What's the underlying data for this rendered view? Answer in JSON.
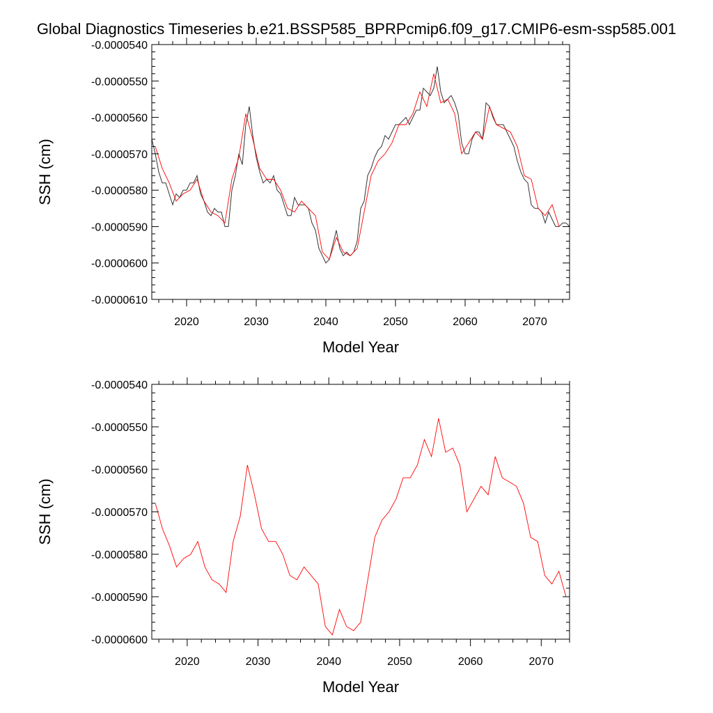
{
  "figure_title": "Global Diagnostics Timeseries b.e21.BSSP585_BPRPcmip6.f09_g17.CMIP6-esm-ssp585.001",
  "chart_data": [
    {
      "type": "line",
      "xlabel": "Model Year",
      "ylabel": "SSH (cm)",
      "xlim": [
        2015,
        2075
      ],
      "ylim": [
        -6.1e-05,
        -5.4e-05
      ],
      "x_ticks": [
        2020,
        2030,
        2040,
        2050,
        2060,
        2070
      ],
      "y_ticks": [
        -5.4e-05,
        -5.5e-05,
        -5.6e-05,
        -5.7e-05,
        -5.8e-05,
        -5.9e-05,
        -6e-05,
        -6.1e-05
      ],
      "y_tick_labels": [
        "-0.0000540",
        "-0.0000550",
        "-0.0000560",
        "-0.0000570",
        "-0.0000580",
        "-0.0000590",
        "-0.0000600",
        "-0.0000610"
      ],
      "x_tick_labels": [
        "2020",
        "2030",
        "2040",
        "2050",
        "2060",
        "2070"
      ],
      "grid": false,
      "series": [
        {
          "color": "#333333",
          "style": "monthly",
          "x": [
            2015.0,
            2015.5,
            2016.0,
            2016.5,
            2017.0,
            2017.5,
            2018.0,
            2018.5,
            2019.0,
            2019.5,
            2020.0,
            2020.5,
            2021.0,
            2021.5,
            2022.0,
            2022.5,
            2023.0,
            2023.5,
            2024.0,
            2024.5,
            2025.0,
            2025.5,
            2026.0,
            2026.5,
            2027.0,
            2027.5,
            2028.0,
            2028.5,
            2029.0,
            2029.5,
            2030.0,
            2030.5,
            2031.0,
            2031.5,
            2032.0,
            2032.5,
            2033.0,
            2033.5,
            2034.0,
            2034.5,
            2035.0,
            2035.5,
            2036.0,
            2036.5,
            2037.0,
            2037.5,
            2038.0,
            2038.5,
            2039.0,
            2039.5,
            2040.0,
            2040.5,
            2041.0,
            2041.5,
            2042.0,
            2042.5,
            2043.0,
            2043.5,
            2044.0,
            2044.5,
            2045.0,
            2045.5,
            2046.0,
            2046.5,
            2047.0,
            2047.5,
            2048.0,
            2048.5,
            2049.0,
            2049.5,
            2050.0,
            2050.5,
            2051.0,
            2051.5,
            2052.0,
            2052.5,
            2053.0,
            2053.5,
            2054.0,
            2054.5,
            2055.0,
            2055.5,
            2056.0,
            2056.5,
            2057.0,
            2057.5,
            2058.0,
            2058.5,
            2059.0,
            2059.5,
            2060.0,
            2060.5,
            2061.0,
            2061.5,
            2062.0,
            2062.5,
            2063.0,
            2063.5,
            2064.0,
            2064.5,
            2065.0,
            2065.5,
            2066.0,
            2066.5,
            2067.0,
            2067.5,
            2068.0,
            2068.5,
            2069.0,
            2069.5,
            2070.0,
            2070.5,
            2071.0,
            2071.5,
            2072.0,
            2072.5,
            2073.0,
            2073.5,
            2074.0,
            2074.5,
            2075.0
          ],
          "y": [
            -5.66e-05,
            -5.7e-05,
            -5.75e-05,
            -5.78e-05,
            -5.78e-05,
            -5.81e-05,
            -5.84e-05,
            -5.81e-05,
            -5.82e-05,
            -5.8e-05,
            -5.8e-05,
            -5.78e-05,
            -5.78e-05,
            -5.76e-05,
            -5.81e-05,
            -5.83e-05,
            -5.86e-05,
            -5.87e-05,
            -5.85e-05,
            -5.86e-05,
            -5.86e-05,
            -5.9e-05,
            -5.9e-05,
            -5.8e-05,
            -5.76e-05,
            -5.7e-05,
            -5.73e-05,
            -5.62e-05,
            -5.57e-05,
            -5.65e-05,
            -5.71e-05,
            -5.75e-05,
            -5.78e-05,
            -5.77e-05,
            -5.78e-05,
            -5.76e-05,
            -5.8e-05,
            -5.81e-05,
            -5.84e-05,
            -5.87e-05,
            -5.87e-05,
            -5.82e-05,
            -5.84e-05,
            -5.84e-05,
            -5.84e-05,
            -5.85e-05,
            -5.89e-05,
            -5.91e-05,
            -5.96e-05,
            -5.98e-05,
            -6e-05,
            -5.99e-05,
            -5.95e-05,
            -5.91e-05,
            -5.96e-05,
            -5.98e-05,
            -5.97e-05,
            -5.98e-05,
            -5.97e-05,
            -5.94e-05,
            -5.85e-05,
            -5.83e-05,
            -5.76e-05,
            -5.74e-05,
            -5.71e-05,
            -5.69e-05,
            -5.68e-05,
            -5.65e-05,
            -5.66e-05,
            -5.64e-05,
            -5.62e-05,
            -5.62e-05,
            -5.61e-05,
            -5.6e-05,
            -5.62e-05,
            -5.6e-05,
            -5.58e-05,
            -5.58e-05,
            -5.52e-05,
            -5.53e-05,
            -5.54e-05,
            -5.52e-05,
            -5.46e-05,
            -5.53e-05,
            -5.56e-05,
            -5.55e-05,
            -5.54e-05,
            -5.56e-05,
            -5.59e-05,
            -5.67e-05,
            -5.7e-05,
            -5.7e-05,
            -5.66e-05,
            -5.64e-05,
            -5.64e-05,
            -5.66e-05,
            -5.56e-05,
            -5.57e-05,
            -5.6e-05,
            -5.62e-05,
            -5.62e-05,
            -5.62e-05,
            -5.64e-05,
            -5.66e-05,
            -5.68e-05,
            -5.72e-05,
            -5.75e-05,
            -5.77e-05,
            -5.78e-05,
            -5.84e-05,
            -5.85e-05,
            -5.85e-05,
            -5.86e-05,
            -5.89e-05,
            -5.86e-05,
            -5.88e-05,
            -5.9e-05,
            -5.9e-05,
            -5.89e-05,
            -5.89e-05,
            -5.9e-05
          ]
        },
        {
          "color": "#ff0000",
          "style": "annual",
          "x": [
            2015.5,
            2016.5,
            2017.5,
            2018.5,
            2019.5,
            2020.5,
            2021.5,
            2022.5,
            2023.5,
            2024.5,
            2025.5,
            2026.5,
            2027.5,
            2028.5,
            2029.5,
            2030.5,
            2031.5,
            2032.5,
            2033.5,
            2034.5,
            2035.5,
            2036.5,
            2037.5,
            2038.5,
            2039.5,
            2040.5,
            2041.5,
            2042.5,
            2043.5,
            2044.5,
            2045.5,
            2046.5,
            2047.5,
            2048.5,
            2049.5,
            2050.5,
            2051.5,
            2052.5,
            2053.5,
            2054.5,
            2055.5,
            2056.5,
            2057.5,
            2058.5,
            2059.5,
            2060.5,
            2061.5,
            2062.5,
            2063.5,
            2064.5,
            2065.5,
            2066.5,
            2067.5,
            2068.5,
            2069.5,
            2070.5,
            2071.5,
            2072.5,
            2073.5
          ],
          "y": [
            -5.68e-05,
            -5.74e-05,
            -5.78e-05,
            -5.83e-05,
            -5.81e-05,
            -5.8e-05,
            -5.77e-05,
            -5.83e-05,
            -5.86e-05,
            -5.87e-05,
            -5.89e-05,
            -5.77e-05,
            -5.71e-05,
            -5.59e-05,
            -5.66e-05,
            -5.74e-05,
            -5.77e-05,
            -5.77e-05,
            -5.8e-05,
            -5.85e-05,
            -5.86e-05,
            -5.83e-05,
            -5.85e-05,
            -5.87e-05,
            -5.97e-05,
            -5.99e-05,
            -5.93e-05,
            -5.97e-05,
            -5.98e-05,
            -5.96e-05,
            -5.86e-05,
            -5.76e-05,
            -5.72e-05,
            -5.7e-05,
            -5.67e-05,
            -5.62e-05,
            -5.62e-05,
            -5.59e-05,
            -5.53e-05,
            -5.57e-05,
            -5.48e-05,
            -5.56e-05,
            -5.55e-05,
            -5.59e-05,
            -5.7e-05,
            -5.67e-05,
            -5.64e-05,
            -5.66e-05,
            -5.57e-05,
            -5.62e-05,
            -5.63e-05,
            -5.64e-05,
            -5.68e-05,
            -5.76e-05,
            -5.77e-05,
            -5.85e-05,
            -5.87e-05,
            -5.84e-05,
            -5.9e-05
          ]
        }
      ]
    },
    {
      "type": "line",
      "xlabel": "Model Year",
      "ylabel": "SSH (cm)",
      "xlim": [
        2015,
        2074
      ],
      "ylim": [
        -6e-05,
        -5.4e-05
      ],
      "x_ticks": [
        2020,
        2030,
        2040,
        2050,
        2060,
        2070
      ],
      "y_ticks": [
        -5.4e-05,
        -5.5e-05,
        -5.6e-05,
        -5.7e-05,
        -5.8e-05,
        -5.9e-05,
        -6e-05
      ],
      "y_tick_labels": [
        "-0.0000540",
        "-0.0000550",
        "-0.0000560",
        "-0.0000570",
        "-0.0000580",
        "-0.0000590",
        "-0.0000600"
      ],
      "x_tick_labels": [
        "2020",
        "2030",
        "2040",
        "2050",
        "2060",
        "2070"
      ],
      "grid": false,
      "series": [
        {
          "color": "#ff0000",
          "style": "annual",
          "x": [
            2015.5,
            2016.5,
            2017.5,
            2018.5,
            2019.5,
            2020.5,
            2021.5,
            2022.5,
            2023.5,
            2024.5,
            2025.5,
            2026.5,
            2027.5,
            2028.5,
            2029.5,
            2030.5,
            2031.5,
            2032.5,
            2033.5,
            2034.5,
            2035.5,
            2036.5,
            2037.5,
            2038.5,
            2039.5,
            2040.5,
            2041.5,
            2042.5,
            2043.5,
            2044.5,
            2045.5,
            2046.5,
            2047.5,
            2048.5,
            2049.5,
            2050.5,
            2051.5,
            2052.5,
            2053.5,
            2054.5,
            2055.5,
            2056.5,
            2057.5,
            2058.5,
            2059.5,
            2060.5,
            2061.5,
            2062.5,
            2063.5,
            2064.5,
            2065.5,
            2066.5,
            2067.5,
            2068.5,
            2069.5,
            2070.5,
            2071.5,
            2072.5,
            2073.5
          ],
          "y": [
            -5.68e-05,
            -5.74e-05,
            -5.78e-05,
            -5.83e-05,
            -5.81e-05,
            -5.8e-05,
            -5.77e-05,
            -5.83e-05,
            -5.86e-05,
            -5.87e-05,
            -5.89e-05,
            -5.77e-05,
            -5.71e-05,
            -5.59e-05,
            -5.66e-05,
            -5.74e-05,
            -5.77e-05,
            -5.77e-05,
            -5.8e-05,
            -5.85e-05,
            -5.86e-05,
            -5.83e-05,
            -5.85e-05,
            -5.87e-05,
            -5.97e-05,
            -5.99e-05,
            -5.93e-05,
            -5.97e-05,
            -5.98e-05,
            -5.96e-05,
            -5.86e-05,
            -5.76e-05,
            -5.72e-05,
            -5.7e-05,
            -5.67e-05,
            -5.62e-05,
            -5.62e-05,
            -5.59e-05,
            -5.53e-05,
            -5.57e-05,
            -5.48e-05,
            -5.56e-05,
            -5.55e-05,
            -5.59e-05,
            -5.7e-05,
            -5.67e-05,
            -5.64e-05,
            -5.66e-05,
            -5.57e-05,
            -5.62e-05,
            -5.63e-05,
            -5.64e-05,
            -5.68e-05,
            -5.76e-05,
            -5.77e-05,
            -5.85e-05,
            -5.87e-05,
            -5.84e-05,
            -5.9e-05
          ]
        }
      ]
    }
  ]
}
